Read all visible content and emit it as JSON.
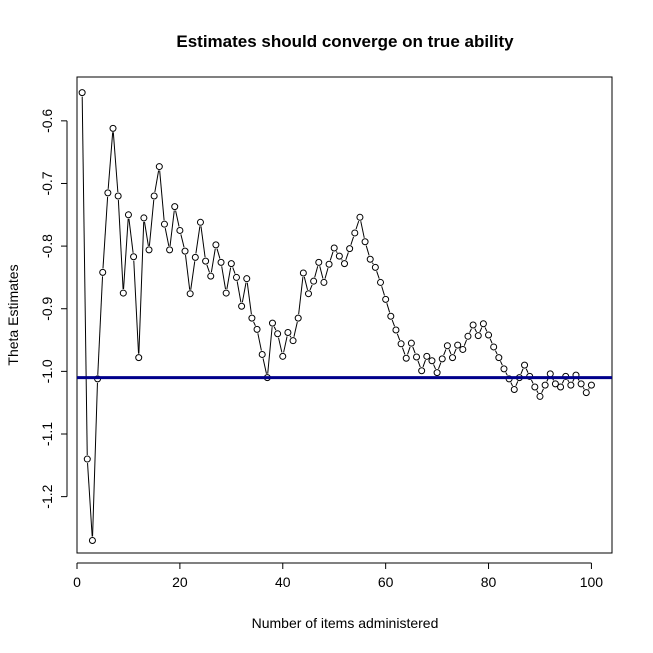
{
  "chart_data": {
    "type": "line",
    "title": "Estimates should converge on true ability",
    "xlabel": "Number of items administered",
    "ylabel": "Theta Estimates",
    "xlim": [
      0,
      104
    ],
    "ylim": [
      -1.29,
      -0.53
    ],
    "xticks": [
      0,
      20,
      40,
      60,
      80,
      100
    ],
    "yticks": [
      -1.2,
      -1.1,
      -1.0,
      -0.9,
      -0.8,
      -0.7,
      -0.6
    ],
    "xtick_labels": [
      "0",
      "20",
      "40",
      "60",
      "80",
      "100"
    ],
    "ytick_labels": [
      "-1.2",
      "-1.1",
      "-1.0",
      "-0.9",
      "-0.8",
      "-0.7",
      "-0.6"
    ],
    "reference_line": {
      "y": -1.01,
      "color": "#00008B"
    },
    "series": [
      {
        "name": "Theta estimate",
        "marker": "open-circle",
        "x": [
          1,
          2,
          3,
          4,
          5,
          6,
          7,
          8,
          9,
          10,
          11,
          12,
          13,
          14,
          15,
          16,
          17,
          18,
          19,
          20,
          21,
          22,
          23,
          24,
          25,
          26,
          27,
          28,
          29,
          30,
          31,
          32,
          33,
          34,
          35,
          36,
          37,
          38,
          39,
          40,
          41,
          42,
          43,
          44,
          45,
          46,
          47,
          48,
          49,
          50,
          51,
          52,
          53,
          54,
          55,
          56,
          57,
          58,
          59,
          60,
          61,
          62,
          63,
          64,
          65,
          66,
          67,
          68,
          69,
          70,
          71,
          72,
          73,
          74,
          75,
          76,
          77,
          78,
          79,
          80,
          81,
          82,
          83,
          84,
          85,
          86,
          87,
          88,
          89,
          90,
          91,
          92,
          93,
          94,
          95,
          96,
          97,
          98,
          99,
          100
        ],
        "values": [
          -0.555,
          -1.14,
          -1.27,
          -1.012,
          -0.842,
          -0.715,
          -0.612,
          -0.72,
          -0.875,
          -0.75,
          -0.817,
          -0.978,
          -0.755,
          -0.806,
          -0.72,
          -0.673,
          -0.765,
          -0.806,
          -0.737,
          -0.775,
          -0.808,
          -0.876,
          -0.818,
          -0.762,
          -0.824,
          -0.848,
          -0.798,
          -0.826,
          -0.875,
          -0.828,
          -0.85,
          -0.896,
          -0.852,
          -0.915,
          -0.933,
          -0.973,
          -1.01,
          -0.923,
          -0.94,
          -0.976,
          -0.938,
          -0.951,
          -0.915,
          -0.843,
          -0.876,
          -0.856,
          -0.826,
          -0.858,
          -0.829,
          -0.803,
          -0.816,
          -0.828,
          -0.804,
          -0.779,
          -0.754,
          -0.793,
          -0.821,
          -0.834,
          -0.858,
          -0.885,
          -0.912,
          -0.934,
          -0.956,
          -0.979,
          -0.955,
          -0.977,
          -0.999,
          -0.976,
          -0.983,
          -1.002,
          -0.98,
          -0.959,
          -0.978,
          -0.958,
          -0.965,
          -0.944,
          -0.926,
          -0.943,
          -0.924,
          -0.942,
          -0.961,
          -0.978,
          -0.996,
          -1.012,
          -1.029,
          -1.01,
          -0.99,
          -1.008,
          -1.025,
          -1.04,
          -1.022,
          -1.004,
          -1.02,
          -1.025,
          -1.008,
          -1.022,
          -1.006,
          -1.02,
          -1.034,
          -1.022
        ]
      }
    ]
  }
}
